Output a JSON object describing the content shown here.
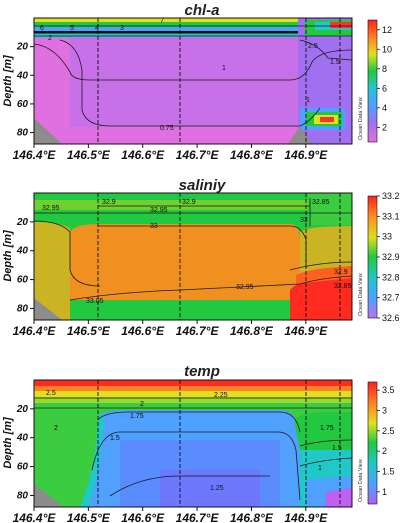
{
  "watermark": "Ocean Data View",
  "colors": {
    "land": "#8c8c8c",
    "contour": "#1a1a1a",
    "grid": "#111111"
  },
  "chart_data": [
    {
      "type": "heatmap",
      "title": "chl-a",
      "xlabel": "",
      "ylabel": "Depth [m]",
      "x_ticks": [
        "146.4°E",
        "146.5°E",
        "146.6°E",
        "146.7°E",
        "146.8°E",
        "146.9°E"
      ],
      "y_ticks": [
        "20",
        "40",
        "60",
        "80"
      ],
      "xlim": [
        146.4,
        146.985
      ],
      "ylim": [
        88,
        0
      ],
      "colorbar_ticks": [
        2,
        4,
        6,
        8,
        10,
        12
      ],
      "colorbar_range": [
        0.5,
        13
      ],
      "contour_labels": [
        "7",
        "6",
        "5",
        "4",
        "3",
        "2",
        "1",
        "0.75",
        "2.5",
        "1.5",
        "1"
      ]
    },
    {
      "type": "heatmap",
      "title": "saliniy",
      "xlabel": "",
      "ylabel": "Depth [m]",
      "x_ticks": [
        "146.4°E",
        "146.5°E",
        "146.6°E",
        "146.7°E",
        "146.8°E",
        "146.9°E"
      ],
      "y_ticks": [
        "20",
        "40",
        "60",
        "80"
      ],
      "xlim": [
        146.4,
        146.985
      ],
      "ylim": [
        88,
        0
      ],
      "colorbar_ticks": [
        32.6,
        32.7,
        32.8,
        32.9,
        33,
        33.1,
        33.2
      ],
      "colorbar_range": [
        32.6,
        33.2
      ],
      "contour_labels": [
        "32.95",
        "32.9",
        "32.95",
        "33",
        "32.9",
        "32.85",
        "33",
        "32.95",
        "33.05",
        "32.9",
        "32.85"
      ]
    },
    {
      "type": "heatmap",
      "title": "temp",
      "xlabel": "",
      "ylabel": "Depth [m]",
      "x_ticks": [
        "146.4°E",
        "146.5°E",
        "146.6°E",
        "146.7°E",
        "146.8°E",
        "146.9°E"
      ],
      "y_ticks": [
        "20",
        "40",
        "60",
        "80"
      ],
      "xlim": [
        146.4,
        146.985
      ],
      "ylim": [
        88,
        0
      ],
      "colorbar_ticks": [
        1,
        1.5,
        2,
        2.5,
        3,
        3.5
      ],
      "colorbar_range": [
        0.7,
        3.7
      ],
      "contour_labels": [
        "2.5",
        "2",
        "2.25",
        "2",
        "1.75",
        "1.5",
        "1.25",
        "1",
        "1.75",
        "1.5"
      ]
    }
  ]
}
